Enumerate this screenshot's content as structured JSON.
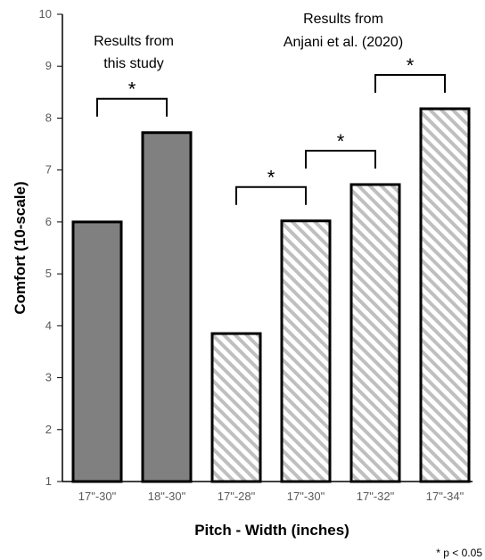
{
  "chart_data": {
    "type": "bar",
    "title": "",
    "xlabel": "Pitch - Width (inches)",
    "ylabel": "Comfort (10-scale)",
    "ylim": [
      1,
      10
    ],
    "yticks": [
      "1",
      "2",
      "3",
      "4",
      "5",
      "6",
      "7",
      "8",
      "9",
      "10"
    ],
    "categories": [
      "17\"-30\"",
      "18\"-30\"",
      "17\"-28\"",
      "17\"-30\"",
      "17\"-32\"",
      "17\"-34\""
    ],
    "values": [
      6.0,
      7.72,
      3.85,
      6.02,
      6.72,
      8.18
    ],
    "groups": [
      {
        "label_line1": "Results from",
        "label_line2": "this study",
        "fill": "solid",
        "color": "#808080",
        "indices": [
          0,
          1
        ]
      },
      {
        "label_line1": "Results from",
        "label_line2": "Anjani et al. (2020)",
        "fill": "hatched",
        "color": "#bfbfbf",
        "indices": [
          2,
          3,
          4,
          5
        ]
      }
    ],
    "significance": [
      {
        "from": 0,
        "to": 1,
        "symbol": "*"
      },
      {
        "from": 2,
        "to": 3,
        "symbol": "*"
      },
      {
        "from": 3,
        "to": 4,
        "symbol": "*"
      },
      {
        "from": 4,
        "to": 5,
        "symbol": "*"
      }
    ],
    "note": "* p < 0.05",
    "grid": false,
    "legend": "none"
  }
}
